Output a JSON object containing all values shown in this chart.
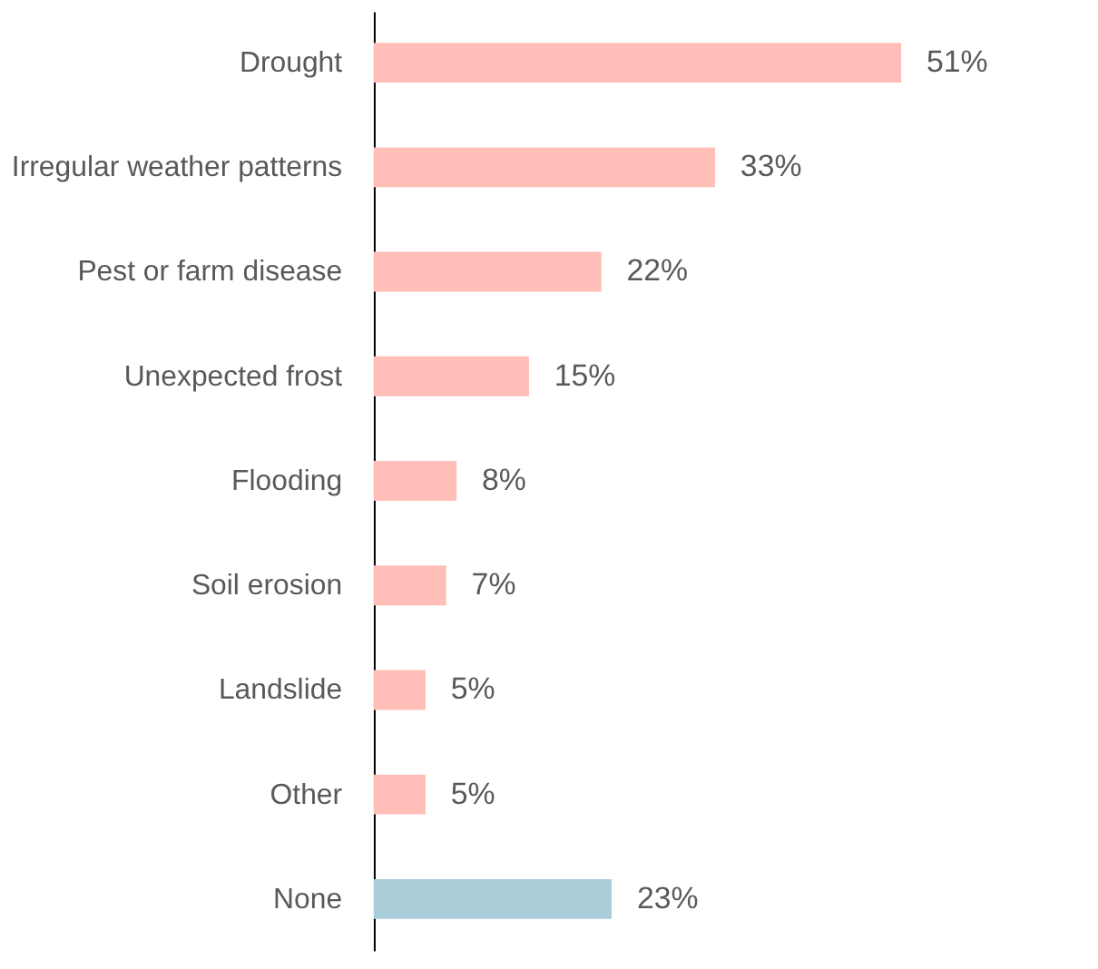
{
  "chart_data": {
    "type": "bar",
    "orientation": "horizontal",
    "categories": [
      "Drought",
      "Irregular weather patterns",
      "Pest or farm disease",
      "Unexpected frost",
      "Flooding",
      "Soil erosion",
      "Landslide",
      "Other",
      "None"
    ],
    "values": [
      51,
      33,
      22,
      15,
      8,
      7,
      5,
      5,
      23
    ],
    "value_labels": [
      "51%",
      "33%",
      "22%",
      "15%",
      "8%",
      "7%",
      "5%",
      "5%",
      "23%"
    ],
    "colors": [
      "#ffbfb8",
      "#ffbfb8",
      "#ffbfb8",
      "#ffbfb8",
      "#ffbfb8",
      "#ffbfb8",
      "#ffbfb8",
      "#ffbfb8",
      "#a9ceda"
    ],
    "grid": false
  }
}
